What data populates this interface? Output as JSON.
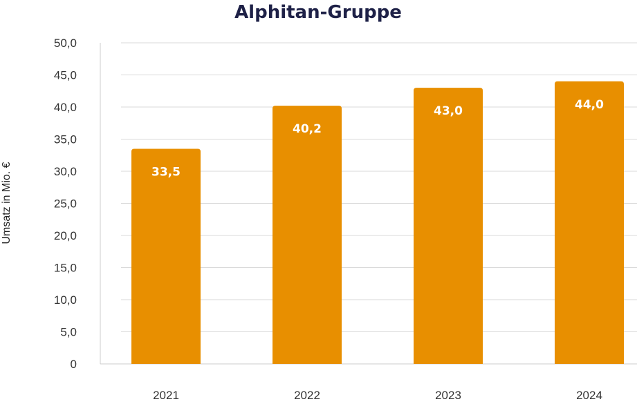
{
  "chart_data": {
    "type": "bar",
    "title": "Alphitan-Gruppe",
    "xlabel": "",
    "ylabel": "Umsatz in Mio. €",
    "categories": [
      "2021",
      "2022",
      "2023",
      "2024"
    ],
    "values": [
      33.5,
      40.2,
      43.0,
      44.0
    ],
    "value_labels": [
      "33,5",
      "40,2",
      "43,0",
      "44,0"
    ],
    "ylim": [
      0,
      50
    ],
    "y_ticks": [
      0,
      5,
      10,
      15,
      20,
      25,
      30,
      35,
      40,
      45,
      50
    ],
    "y_tick_labels": [
      "0",
      "5,0",
      "10,0",
      "15,0",
      "20,0",
      "25,0",
      "30,0",
      "35,0",
      "40,0",
      "45,0",
      "50,0"
    ],
    "grid": true,
    "legend": "none",
    "bar_color": "#e88f00",
    "title_color": "#1e2147"
  }
}
